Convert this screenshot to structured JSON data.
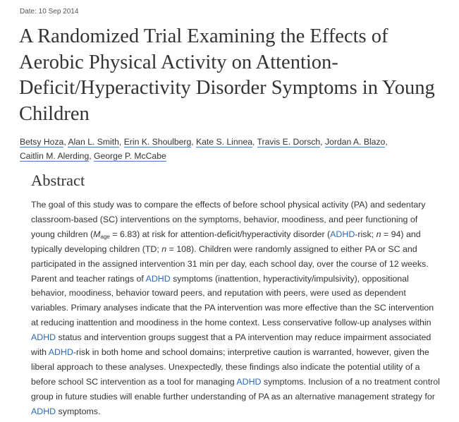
{
  "date_line": "Date: 10 Sep 2014",
  "title": "A Randomized Trial Examining the Effects of Aerobic Physical Activity on Attention-Deficit/Hyperactivity Disorder Symptoms in Young Children",
  "authors": [
    "Betsy Hoza",
    "Alan L. Smith",
    "Erin K. Shoulberg",
    "Kate S. Linnea",
    "Travis E. Dorsch",
    "Jordan A. Blazo",
    "Caitlin M. Alerding",
    "George P. McCabe"
  ],
  "author_separator": ", ",
  "abstract": {
    "heading": "Abstract",
    "t1": "The goal of this study was to compare the effects of before school physical activity (PA) and sedentary classroom-based (SC) interventions on the symptoms, behavior, moodiness, and peer functioning of young children (",
    "m_symbol": "M",
    "m_subscript": "age",
    "t2": " = 6.83) at risk for attention-deficit/hyperactivity disorder (",
    "adhd": "ADHD",
    "t3": "-risk; ",
    "n_symbol": "n",
    "t4": " = 94) and typically developing children (TD; ",
    "t5": " = 108). Children were randomly assigned to either PA or SC and participated in the assigned intervention 31 min per day, each school day, over the course of 12 weeks. Parent and teacher ratings of ",
    "t6": " symptoms (inattention, hyperactivity/impulsivity), oppositional behavior, moodiness, behavior toward peers, and reputation with peers, were used as dependent variables. Primary analyses indicate that the PA intervention was more effective than the SC intervention at reducing inattention and moodiness in the home context. Less conservative follow-up analyses within ",
    "t7": " status and intervention groups suggest that a PA intervention may reduce impairment associated with ",
    "t8": "-risk in both home and school domains; interpretive caution is warranted, however, given the liberal approach to these analyses. Unexpectedly, these findings also indicate the potential utility of a before school SC intervention as a tool for managing ",
    "t9": " symptoms. Inclusion of a no treatment control group in future studies will enable further understanding of PA as an alternative management strategy for ",
    "t10": " symptoms."
  },
  "colors": {
    "text": "#333333",
    "link": "#2a6ab6",
    "author_underline": "#4d7ec4"
  }
}
